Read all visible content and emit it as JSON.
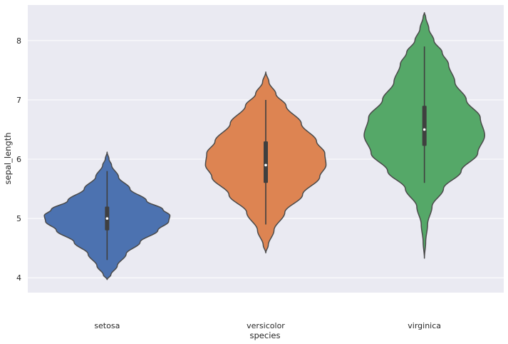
{
  "chart_data": {
    "type": "violin",
    "xlabel": "species",
    "ylabel": "sepal_length",
    "ylim": [
      3.75,
      8.6
    ],
    "y_ticks": [
      4,
      5,
      6,
      7,
      8
    ],
    "grid": true,
    "background_color": "#eaeaf2",
    "grid_color": "#ffffff",
    "outline_color": "#4a4a4a",
    "categories": [
      "setosa",
      "versicolor",
      "virginica"
    ],
    "series": [
      {
        "category": "setosa",
        "color": "#4c72b0",
        "min": 4.3,
        "q1": 4.8,
        "median": 5.0,
        "q3": 5.2,
        "max": 5.8,
        "kde_min": 3.97,
        "kde_max": 6.12,
        "density_profile": [
          [
            3.97,
            0.0
          ],
          [
            4.05,
            0.06
          ],
          [
            4.2,
            0.16
          ],
          [
            4.4,
            0.3
          ],
          [
            4.6,
            0.52
          ],
          [
            4.8,
            0.8
          ],
          [
            4.95,
            0.97
          ],
          [
            5.05,
            0.99
          ],
          [
            5.15,
            0.88
          ],
          [
            5.3,
            0.62
          ],
          [
            5.5,
            0.36
          ],
          [
            5.7,
            0.18
          ],
          [
            5.9,
            0.07
          ],
          [
            6.0,
            0.03
          ],
          [
            6.12,
            0.0
          ]
        ]
      },
      {
        "category": "versicolor",
        "color": "#dd8452",
        "min": 4.9,
        "q1": 5.6,
        "median": 5.9,
        "q3": 6.3,
        "max": 7.0,
        "kde_min": 4.42,
        "kde_max": 7.47,
        "density_profile": [
          [
            4.42,
            0.0
          ],
          [
            4.55,
            0.04
          ],
          [
            4.8,
            0.13
          ],
          [
            5.1,
            0.3
          ],
          [
            5.4,
            0.58
          ],
          [
            5.7,
            0.85
          ],
          [
            5.9,
            0.95
          ],
          [
            6.1,
            0.93
          ],
          [
            6.3,
            0.8
          ],
          [
            6.6,
            0.56
          ],
          [
            6.9,
            0.32
          ],
          [
            7.1,
            0.16
          ],
          [
            7.3,
            0.05
          ],
          [
            7.47,
            0.0
          ]
        ]
      },
      {
        "category": "virginica",
        "color": "#55a868",
        "min": 5.6,
        "q1": 6.225,
        "median": 6.5,
        "q3": 6.9,
        "max": 7.9,
        "kde_min": 4.33,
        "kde_max": 8.47,
        "density_profile": [
          [
            4.33,
            0.0
          ],
          [
            4.6,
            0.02
          ],
          [
            4.9,
            0.05
          ],
          [
            5.2,
            0.12
          ],
          [
            5.5,
            0.3
          ],
          [
            5.8,
            0.58
          ],
          [
            6.1,
            0.84
          ],
          [
            6.4,
            0.95
          ],
          [
            6.7,
            0.88
          ],
          [
            7.0,
            0.66
          ],
          [
            7.3,
            0.48
          ],
          [
            7.6,
            0.38
          ],
          [
            7.8,
            0.28
          ],
          [
            8.0,
            0.15
          ],
          [
            8.2,
            0.07
          ],
          [
            8.4,
            0.02
          ],
          [
            8.47,
            0.0
          ]
        ]
      }
    ]
  }
}
